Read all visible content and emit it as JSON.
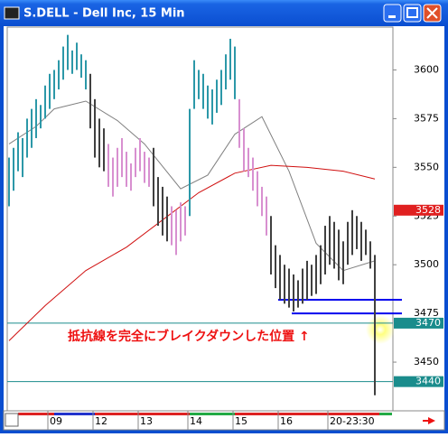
{
  "chart_data": {
    "type": "ohlc",
    "title": "S.DELL - Dell Inc, 15 Min",
    "ylim": [
      3425,
      3622
    ],
    "yticks": [
      3450,
      3475,
      3500,
      3525,
      3550,
      3575,
      3600
    ],
    "xticks": [
      {
        "value": 9,
        "label": "09"
      },
      {
        "value": 19,
        "label": "12"
      },
      {
        "value": 29,
        "label": "13"
      },
      {
        "value": 40,
        "label": "14"
      },
      {
        "value": 50,
        "label": "15"
      },
      {
        "value": 60,
        "label": "16"
      },
      {
        "value": 71,
        "label": "20-23:30"
      }
    ],
    "series": [
      {
        "color": "#2c98a8",
        "high": [
          3555,
          3560,
          3568,
          3565,
          3575,
          3580,
          3585,
          3582,
          3592,
          3598,
          3600,
          3605,
          3612,
          3618,
          3610,
          3614,
          3608,
          3605
        ],
        "low": [
          3530,
          3538,
          3548,
          3545,
          3555,
          3560,
          3565,
          3570,
          3575,
          3580,
          3585,
          3590,
          3595,
          3600,
          3598,
          3600,
          3596,
          3590
        ]
      },
      {
        "color": "#404040",
        "high": [
          3598,
          3585,
          3575,
          3570
        ],
        "low": [
          3570,
          3555,
          3550,
          3548
        ]
      },
      {
        "color": "#d890d0",
        "high": [
          3562,
          3555,
          3560,
          3565,
          3558,
          3552,
          3560,
          3565,
          3558,
          3555
        ],
        "low": [
          3540,
          3535,
          3540,
          3545,
          3540,
          3538,
          3545,
          3548,
          3542,
          3540
        ]
      },
      {
        "color": "#404040",
        "high": [
          3560,
          3545,
          3540,
          3535
        ],
        "low": [
          3530,
          3520,
          3515,
          3512
        ]
      },
      {
        "color": "#d890d0",
        "high": [
          3530,
          3528,
          3532,
          3530
        ],
        "low": [
          3510,
          3505,
          3512,
          3515
        ]
      },
      {
        "color": "#2c98a8",
        "high": [
          3580,
          3605,
          3600,
          3598,
          3592,
          3590,
          3595,
          3600,
          3608,
          3616,
          3612
        ],
        "low": [
          3525,
          3580,
          3585,
          3580,
          3575,
          3572,
          3578,
          3582,
          3590,
          3595,
          3585
        ]
      },
      {
        "color": "#d890d0",
        "high": [
          3585,
          3570,
          3560,
          3555,
          3548,
          3540,
          3535
        ],
        "low": [
          3560,
          3548,
          3545,
          3538,
          3530,
          3525,
          3515
        ]
      },
      {
        "color": "#404040",
        "high": [
          3525,
          3510,
          3505,
          3500,
          3498,
          3495,
          3492,
          3498,
          3502,
          3500,
          3505,
          3510,
          3520,
          3525,
          3522,
          3518,
          3512,
          3522,
          3528,
          3525,
          3522,
          3518,
          3512,
          3505
        ],
        "low": [
          3495,
          3488,
          3482,
          3480,
          3478,
          3476,
          3478,
          3480,
          3482,
          3484,
          3485,
          3490,
          3495,
          3500,
          3498,
          3492,
          3490,
          3500,
          3505,
          3508,
          3502,
          3505,
          3498,
          3433
        ]
      }
    ],
    "lines": [
      {
        "color": "#808080",
        "x": [
          0,
          6,
          10,
          17,
          24,
          30,
          38,
          44,
          50,
          56,
          62,
          68,
          74,
          81
        ],
        "values": [
          3562,
          3571,
          3580,
          3584,
          3574,
          3562,
          3539,
          3546,
          3567,
          3576,
          3548,
          3511,
          3497,
          3502
        ]
      },
      {
        "color": "#d01010",
        "x": [
          0,
          8,
          17,
          26,
          34,
          42,
          50,
          58,
          66,
          74,
          81
        ],
        "values": [
          3461,
          3479,
          3497,
          3509,
          3523,
          3537,
          3547,
          3551,
          3550,
          3548,
          3544
        ]
      }
    ],
    "hlines": [
      {
        "value": 3470,
        "color": "#1a8c8c"
      },
      {
        "value": 3440,
        "color": "#1a8c8c"
      },
      {
        "value": 3482,
        "color": "#0000ee",
        "start": 60
      },
      {
        "value": 3475,
        "color": "#0000ee",
        "start": 63
      }
    ],
    "price_markers": [
      {
        "value": 3528,
        "color": "#e02020"
      },
      {
        "value": 3470,
        "color": "#1a8c8c"
      },
      {
        "value": 3440,
        "color": "#1a8c8c"
      }
    ],
    "annotation": {
      "text": "抵抗線を完全にブレイクダウンした位置 ↑",
      "color": "#ee1111"
    }
  }
}
